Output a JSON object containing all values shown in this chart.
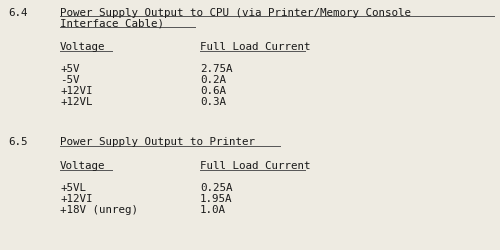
{
  "bg_color": "#eeebe2",
  "text_color": "#1a1a1a",
  "font_family": "monospace",
  "font_size": 7.8,
  "underline_color": "#555555",
  "section_64": {
    "number": "6.4",
    "title_line1": "Power Supply Output to CPU (via Printer/Memory Console",
    "title_line2": "Interface Cable)",
    "col1_header": "Voltage",
    "col2_header": "Full Load Current",
    "rows": [
      [
        "+5V",
        "2.75A"
      ],
      [
        "-5V",
        "0.2A"
      ],
      [
        "+12VI",
        "0.6A"
      ],
      [
        "+12VL",
        "0.3A"
      ]
    ]
  },
  "section_65": {
    "number": "6.5",
    "title": "Power Supply Output to Printer",
    "col1_header": "Voltage",
    "col2_header": "Full Load Current",
    "rows": [
      [
        "+5VL",
        "0.25A"
      ],
      [
        "+12VI",
        "1.95A"
      ],
      [
        "+18V (unreg)",
        "1.0A"
      ]
    ]
  }
}
